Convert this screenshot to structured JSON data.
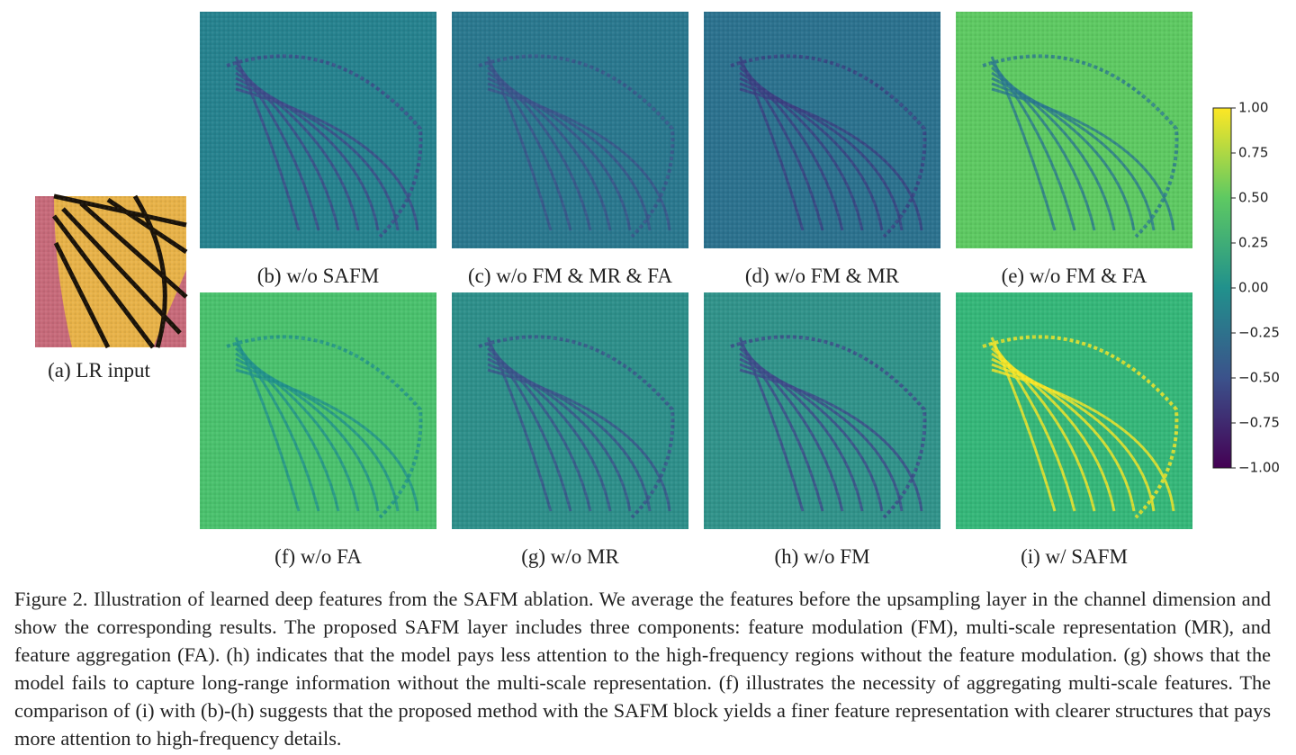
{
  "panels": [
    {
      "label": "(a) LR input"
    },
    {
      "label": "(b) w/o SAFM"
    },
    {
      "label": "(c) w/o FM & MR & FA"
    },
    {
      "label": "(d) w/o FM & MR"
    },
    {
      "label": "(e) w/o FM & FA"
    },
    {
      "label": "(f) w/o FA"
    },
    {
      "label": "(g) w/o MR"
    },
    {
      "label": "(h) w/o FM"
    },
    {
      "label": "(i) w/ SAFM"
    }
  ],
  "colorbar": {
    "range": [
      -1,
      1
    ],
    "ticks": [
      {
        "value": 1,
        "label": "1.00"
      },
      {
        "value": 0.75,
        "label": "0.75"
      },
      {
        "value": 0.5,
        "label": "0.50"
      },
      {
        "value": 0.25,
        "label": "0.25"
      },
      {
        "value": 0,
        "label": "0.00"
      },
      {
        "value": -0.25,
        "label": "−0.25"
      },
      {
        "value": -0.5,
        "label": "−0.50"
      },
      {
        "value": -0.75,
        "label": "−0.75"
      },
      {
        "value": -1,
        "label": "−1.00"
      }
    ]
  },
  "caption": "Figure 2. Illustration of learned deep features from the SAFM ablation. We average the features before the upsampling layer in the channel dimension and show the corresponding results. The proposed SAFM layer includes three components: feature modulation (FM), multi-scale representation (MR), and feature aggregation (FA). (h) indicates that the model pays less attention to the high-frequency regions without the feature modulation. (g) shows that the model fails to capture long-range information without the multi-scale representation. (f) illustrates the necessity of aggregating multi-scale features. The comparison of (i) with (b)-(h) suggests that the proposed method with the SAFM block yields a finer feature representation with clearer structures that pays more attention to high-frequency details."
}
